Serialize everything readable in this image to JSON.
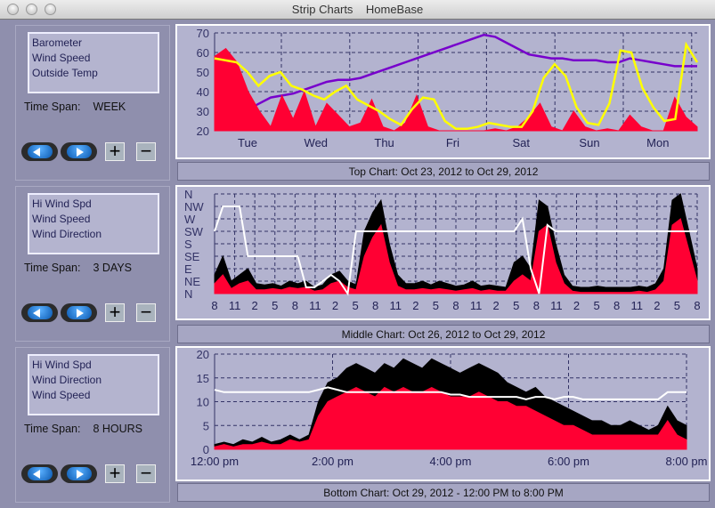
{
  "window": {
    "title": "Strip Charts    HomeBase"
  },
  "panels": [
    {
      "list": [
        "Barometer",
        "Wind Speed",
        "Outside Temp"
      ],
      "time_span_label": "Time Span:",
      "time_span": "WEEK",
      "caption": "Top Chart:  Oct 23, 2012  to  Oct 29, 2012"
    },
    {
      "list": [
        "Hi Wind Spd",
        "Wind Speed",
        "Wind Direction"
      ],
      "time_span_label": "Time Span:",
      "time_span": "3 DAYS",
      "caption": "Middle Chart:  Oct 26, 2012  to  Oct 29, 2012"
    },
    {
      "list": [
        "Hi Wind Spd",
        "Wind Direction",
        "Wind Speed"
      ],
      "time_span_label": "Time Span:",
      "time_span": "8 HOURS",
      "caption": "Bottom Chart:  Oct 29, 2012 - 12:00 PM  to  8:00 PM"
    }
  ],
  "buttons": {
    "plus": "+",
    "minus": "−",
    "back_icon": "left-arrow",
    "forward_icon": "right-arrow"
  },
  "chart_data": [
    {
      "type": "line",
      "title": "Top Chart",
      "ylim": [
        20,
        70
      ],
      "yticks": [
        "20",
        "30",
        "40",
        "50",
        "60",
        "70"
      ],
      "xticks": [
        "Tue",
        "Wed",
        "Thu",
        "Fri",
        "Sat",
        "Sun",
        "Mon"
      ],
      "series": [
        {
          "name": "Barometer",
          "color": "#7700cc",
          "values": [
            30,
            30,
            30,
            31,
            34,
            37,
            38,
            39,
            41,
            43,
            45,
            46,
            46,
            47,
            49,
            51,
            53,
            55,
            57,
            59,
            61,
            63,
            65,
            67,
            69,
            68,
            65,
            62,
            59,
            58,
            57,
            57,
            56,
            56,
            56,
            55,
            55,
            57,
            56,
            55,
            54,
            53,
            53,
            53
          ]
        },
        {
          "name": "Wind Speed",
          "color": "#ff0033",
          "values": [
            58,
            62,
            55,
            40,
            30,
            22,
            38,
            26,
            40,
            22,
            34,
            28,
            22,
            24,
            36,
            22,
            20,
            24,
            38,
            22,
            20,
            20,
            20,
            20,
            20,
            21,
            20,
            22,
            27,
            34,
            22,
            20,
            30,
            22,
            20,
            21,
            20,
            28,
            22,
            20,
            20,
            37,
            27,
            22
          ]
        },
        {
          "name": "Outside Temp",
          "color": "#ffff00",
          "values": [
            57,
            56,
            55,
            50,
            43,
            48,
            50,
            43,
            41,
            38,
            36,
            40,
            43,
            36,
            33,
            30,
            26,
            23,
            31,
            37,
            36,
            25,
            21,
            21,
            22,
            24,
            23,
            22,
            22,
            30,
            47,
            54,
            48,
            32,
            24,
            23,
            34,
            61,
            60,
            42,
            32,
            25,
            26,
            64,
            55
          ]
        }
      ]
    },
    {
      "type": "line",
      "title": "Middle Chart",
      "ylim": [
        0,
        8
      ],
      "yticks": [
        "N",
        "NE",
        "E",
        "SE",
        "S",
        "SW",
        "W",
        "NW",
        "N"
      ],
      "xticks": [
        "8",
        "11",
        "2",
        "5",
        "8",
        "11",
        "2",
        "5",
        "8",
        "11",
        "2",
        "5",
        "8",
        "11",
        "2",
        "5",
        "8",
        "11",
        "2",
        "5",
        "8",
        "11",
        "2",
        "5",
        "8"
      ],
      "series": [
        {
          "name": "Hi Wind Spd",
          "color": "#000000",
          "values": [
            1.5,
            3,
            1,
            1.5,
            2,
            0.8,
            0.7,
            0.8,
            0.6,
            1,
            0.8,
            1,
            0.5,
            0.7,
            1.5,
            1.8,
            1,
            0.7,
            5,
            6.5,
            7.5,
            4,
            1.5,
            0.8,
            0.8,
            1,
            0.7,
            1,
            0.8,
            0.6,
            0.7,
            1,
            0.6,
            0.7,
            0.6,
            0.5,
            2.5,
            3,
            2,
            7.5,
            7,
            4,
            1.5,
            0.6,
            0.5,
            0.5,
            0.6,
            0.5,
            0.5,
            0.5,
            0.5,
            0.6,
            0.5,
            0.8,
            2,
            7.5,
            8,
            5,
            2
          ]
        },
        {
          "name": "Wind Speed",
          "color": "#ff0033",
          "values": [
            0.8,
            1.5,
            0.4,
            0.8,
            1,
            0.3,
            0.3,
            0.4,
            0.3,
            0.5,
            0.4,
            0.5,
            0.2,
            0.3,
            0.8,
            1,
            0.5,
            0.3,
            3,
            4.5,
            5.5,
            2.5,
            0.6,
            0.3,
            0.3,
            0.4,
            0.3,
            0.4,
            0.3,
            0.2,
            0.3,
            0.4,
            0.2,
            0.3,
            0.2,
            0.2,
            1,
            1.5,
            1,
            5,
            5.5,
            2.5,
            0.8,
            0.2,
            0.1,
            0.1,
            0.1,
            0.1,
            0.1,
            0.1,
            0.1,
            0.2,
            0.1,
            0.3,
            1,
            5.5,
            6,
            3.5,
            1
          ]
        },
        {
          "name": "Wind Direction",
          "color": "#ffffff",
          "values": [
            5,
            7,
            7,
            7,
            3,
            3,
            3,
            3,
            3,
            3,
            3,
            0.5,
            0.5,
            1,
            1.5,
            1,
            0,
            5,
            5,
            5,
            5,
            5,
            5,
            5,
            5,
            5,
            5,
            5,
            5,
            5,
            5,
            5,
            5,
            5,
            5,
            5,
            5,
            6,
            2,
            0,
            5.5,
            5,
            5,
            5,
            5,
            5,
            5,
            5,
            5,
            5,
            5,
            5,
            5,
            5,
            5,
            5,
            5,
            5,
            5
          ]
        }
      ]
    },
    {
      "type": "line",
      "title": "Bottom Chart",
      "ylim": [
        0,
        20
      ],
      "yticks": [
        "0",
        "5",
        "10",
        "15",
        "20"
      ],
      "xticks": [
        "12:00 pm",
        "2:00 pm",
        "4:00 pm",
        "6:00 pm",
        "8:00 pm"
      ],
      "series": [
        {
          "name": "Hi Wind Spd",
          "color": "#000000",
          "values": [
            1,
            1.5,
            1,
            2,
            1.5,
            2.5,
            1.5,
            2,
            3,
            2,
            3,
            10,
            14,
            15,
            17,
            18,
            17,
            16,
            18,
            17,
            19,
            18,
            17,
            19,
            18,
            17,
            16,
            17,
            18,
            17,
            16,
            14,
            13,
            12,
            13,
            11,
            10,
            9,
            8,
            7,
            6,
            6,
            5,
            5,
            6,
            5,
            4,
            5,
            9,
            6,
            5
          ]
        },
        {
          "name": "Wind Speed",
          "color": "#ff0033",
          "values": [
            0.5,
            1,
            0.5,
            1,
            1,
            1.5,
            1,
            1,
            2,
            1.5,
            2,
            7,
            10,
            11,
            12,
            13,
            12,
            11,
            13,
            12,
            13,
            12,
            12,
            13,
            12,
            11,
            11,
            11,
            12,
            11,
            10,
            10,
            9,
            9,
            8,
            7,
            6,
            5,
            5,
            4,
            3,
            3,
            3,
            3,
            3,
            3,
            3,
            3,
            6,
            3,
            2
          ]
        },
        {
          "name": "Wind Direction",
          "color": "#ffffff",
          "values": [
            12.5,
            12,
            12,
            12,
            12,
            12,
            12,
            12,
            12,
            12,
            12,
            12.5,
            13,
            12.5,
            12,
            12,
            12,
            12,
            12,
            12,
            12,
            12,
            12,
            12,
            12,
            11.5,
            11.5,
            11,
            11,
            11,
            11,
            11,
            11,
            10.5,
            11,
            11,
            10.5,
            11,
            11,
            10.5,
            10.5,
            10.5,
            10.5,
            10.5,
            10.5,
            10.5,
            10.5,
            10.5,
            12,
            12,
            12
          ]
        }
      ]
    }
  ]
}
